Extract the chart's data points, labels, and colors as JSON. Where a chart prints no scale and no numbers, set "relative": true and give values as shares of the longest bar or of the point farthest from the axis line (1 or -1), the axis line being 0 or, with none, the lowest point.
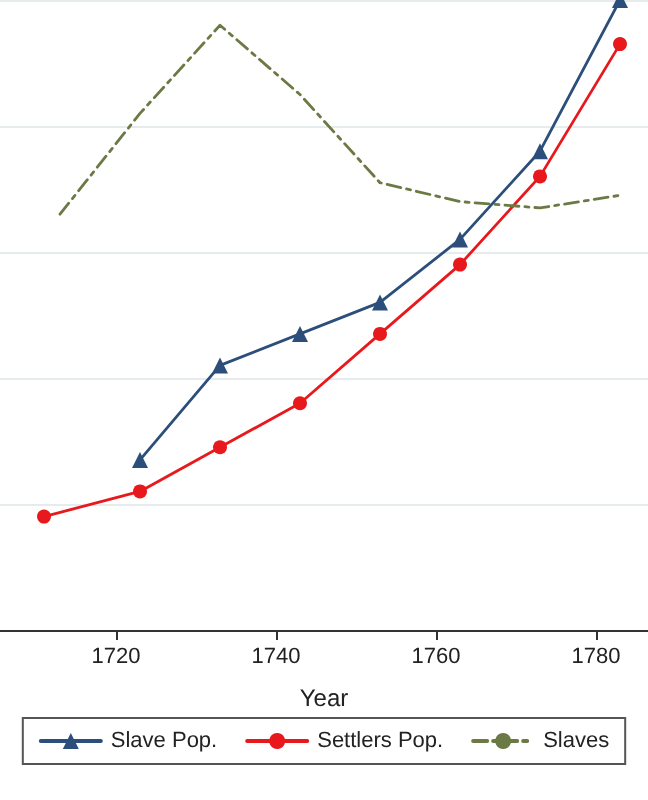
{
  "chart_data": {
    "type": "line",
    "xlabel": "Year",
    "relative": true,
    "xlim": [
      1705.5,
      1786.5
    ],
    "xticks": [
      1720,
      1740,
      1760,
      1780
    ],
    "grid": "y",
    "legend": "bottom",
    "x": [
      1711,
      1723,
      1733,
      1743,
      1753,
      1763,
      1773,
      1783
    ],
    "series": [
      {
        "name": "Slave Pop.",
        "color": "#2b4f7a",
        "marker": "triangle",
        "line_style": "solid",
        "values": [
          null,
          0.27,
          0.42,
          0.47,
          0.52,
          0.62,
          0.76,
          1
        ]
      },
      {
        "name": "Settlers Pop.",
        "color": "#e8191c",
        "marker": "circle",
        "line_style": "solid",
        "values": [
          0.18,
          0.22,
          0.29,
          0.36,
          0.47,
          0.58,
          0.72,
          0.93
        ]
      },
      {
        "name": "Slaves",
        "color": "#6b7a45",
        "marker": "none",
        "line_style": "dashed",
        "x": [
          1713,
          1723,
          1733,
          1743,
          1753,
          1763,
          1773,
          1783
        ],
        "values": [
          0.66,
          0.82,
          0.96,
          0.85,
          0.71,
          0.68,
          0.67,
          0.69
        ]
      }
    ]
  }
}
